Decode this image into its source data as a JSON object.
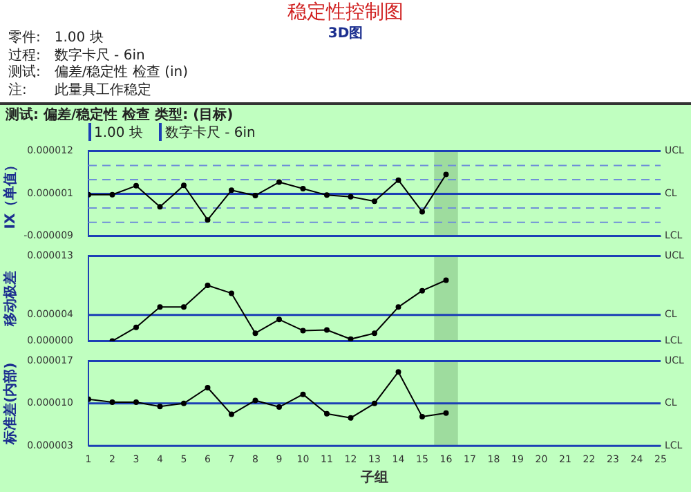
{
  "chart_data": [
    {
      "type": "line",
      "title": "稳定性控制图",
      "subtitle": "3D图",
      "annotations": [
        "零件:　1.00 块",
        "过程:　数字卡尺 - 6in",
        "测试:　偏差/稳定性 检查 (in)",
        "注:　　此量具工作稳定",
        "测试: 偏差/稳定性 检查 类型: (目标)",
        "1.00 块",
        "数字卡尺 - 6in"
      ],
      "ylabel": "IX（单值）",
      "x": [
        1,
        2,
        3,
        4,
        5,
        6,
        7,
        8,
        9,
        10,
        11,
        12,
        13,
        14,
        15,
        16
      ],
      "series": [
        {
          "color": "#000000",
          "values": [
            1.2e-06,
            1.2e-06,
            3.4e-06,
            -1.8e-06,
            3.5e-06,
            -5e-06,
            2.3e-06,
            1e-06,
            4.3e-06,
            2.7e-06,
            1.1e-06,
            7e-07,
            -4e-07,
            4.8e-06,
            -3e-06,
            6.2e-06
          ]
        }
      ],
      "xlim": [
        1,
        25
      ],
      "xticks": [
        1,
        2,
        3,
        4,
        5,
        6,
        7,
        8,
        9,
        10,
        11,
        12,
        13,
        14,
        15,
        16,
        17,
        18,
        19,
        20,
        21,
        22,
        23,
        24,
        25
      ],
      "ylim": [
        -9e-06,
        1.2e-05
      ],
      "yticks": [
        {
          "value": -9e-06,
          "label": "-0.000009"
        },
        {
          "value": 1.4e-06,
          "label": "0.000001"
        },
        {
          "value": 1.2e-05,
          "label": "0.000012"
        }
      ],
      "tick_labels": "y",
      "grid": false,
      "marker": "circle",
      "line_style": "solid",
      "ref_lines": [
        {
          "axis": "y",
          "value": 1.2e-05,
          "label": "UCL",
          "color": "#1c3fb5",
          "line_style": "solid"
        },
        {
          "axis": "y",
          "value": 1.4e-06,
          "label": "CL",
          "color": "#1c3fb5",
          "line_style": "solid"
        },
        {
          "axis": "y",
          "value": -9e-06,
          "label": "LCL",
          "color": "#1c3fb5",
          "line_style": "solid"
        },
        {
          "axis": "y",
          "value": 8.4e-06,
          "color": "#6f8fd8",
          "line_style": "dashed"
        },
        {
          "axis": "y",
          "value": 4.9e-06,
          "color": "#6f8fd8",
          "line_style": "dashed"
        },
        {
          "axis": "y",
          "value": -2.1e-06,
          "color": "#6f8fd8",
          "line_style": "dashed"
        },
        {
          "axis": "y",
          "value": -5.6e-06,
          "color": "#6f8fd8",
          "line_style": "dashed"
        }
      ],
      "bands": [
        {
          "axis": "x",
          "from": 15.5,
          "to": 16.5,
          "color": "#9edc9e"
        }
      ]
    },
    {
      "type": "line",
      "ylabel": "移动极差",
      "x": [
        2,
        3,
        4,
        5,
        6,
        7,
        8,
        9,
        10,
        11,
        12,
        13,
        14,
        15,
        16
      ],
      "series": [
        {
          "color": "#000000",
          "values": [
            0,
            2.1e-06,
            5.2e-06,
            5.2e-06,
            8.5e-06,
            7.3e-06,
            1.2e-06,
            3.3e-06,
            1.6e-06,
            1.7e-06,
            3e-07,
            1.2e-06,
            5.2e-06,
            7.7e-06,
            9.3e-06
          ]
        }
      ],
      "xlim": [
        1,
        25
      ],
      "xticks": [
        1,
        2,
        3,
        4,
        5,
        6,
        7,
        8,
        9,
        10,
        11,
        12,
        13,
        14,
        15,
        16,
        17,
        18,
        19,
        20,
        21,
        22,
        23,
        24,
        25
      ],
      "ylim": [
        0,
        1.3e-05
      ],
      "yticks": [
        {
          "value": 0,
          "label": "0.000000"
        },
        {
          "value": 4e-06,
          "label": "0.000004"
        },
        {
          "value": 1.3e-05,
          "label": "0.000013"
        }
      ],
      "tick_labels": "y",
      "grid": false,
      "marker": "circle",
      "line_style": "solid",
      "ref_lines": [
        {
          "axis": "y",
          "value": 1.3e-05,
          "label": "UCL",
          "color": "#1c3fb5",
          "line_style": "solid"
        },
        {
          "axis": "y",
          "value": 4e-06,
          "label": "CL",
          "color": "#1c3fb5",
          "line_style": "solid"
        },
        {
          "axis": "y",
          "value": 0,
          "label": "LCL",
          "color": "#1c3fb5",
          "line_style": "solid"
        }
      ],
      "bands": [
        {
          "axis": "x",
          "from": 15.5,
          "to": 16.5,
          "color": "#9edc9e"
        }
      ]
    },
    {
      "type": "line",
      "ylabel": "标准差(内部)",
      "xlabel": "子组",
      "x": [
        1,
        2,
        3,
        4,
        5,
        6,
        7,
        8,
        9,
        10,
        11,
        12,
        13,
        14,
        15,
        16
      ],
      "series": [
        {
          "color": "#000000",
          "values": [
            1.07e-05,
            1.02e-05,
            1.02e-05,
            9.5e-06,
            1e-05,
            1.26e-05,
            8.2e-06,
            1.05e-05,
            9.4e-06,
            1.15e-05,
            8.3e-06,
            7.6e-06,
            1e-05,
            1.52e-05,
            7.8e-06,
            8.4e-06
          ]
        }
      ],
      "xlim": [
        1,
        25
      ],
      "xticks": [
        1,
        2,
        3,
        4,
        5,
        6,
        7,
        8,
        9,
        10,
        11,
        12,
        13,
        14,
        15,
        16,
        17,
        18,
        19,
        20,
        21,
        22,
        23,
        24,
        25
      ],
      "ylim": [
        3e-06,
        1.7e-05
      ],
      "yticks": [
        {
          "value": 3e-06,
          "label": "0.000003"
        },
        {
          "value": 1e-05,
          "label": "0.000010"
        },
        {
          "value": 1.7e-05,
          "label": "0.000017"
        }
      ],
      "grid": false,
      "marker": "circle",
      "line_style": "solid",
      "ref_lines": [
        {
          "axis": "y",
          "value": 1.7e-05,
          "label": "UCL",
          "color": "#1c3fb5",
          "line_style": "solid"
        },
        {
          "axis": "y",
          "value": 1e-05,
          "label": "CL",
          "color": "#1c3fb5",
          "line_style": "solid"
        },
        {
          "axis": "y",
          "value": 3e-06,
          "label": "LCL",
          "color": "#1c3fb5",
          "line_style": "solid"
        }
      ],
      "bands": [
        {
          "axis": "x",
          "from": 15.5,
          "to": 16.5,
          "color": "#9edc9e"
        }
      ]
    }
  ]
}
